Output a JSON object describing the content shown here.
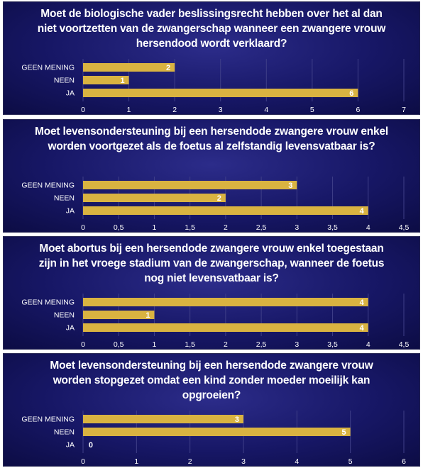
{
  "colors": {
    "bar": "#d9b341",
    "grid": "#3f3f88",
    "text": "#ffffff"
  },
  "chart_data": [
    {
      "type": "bar",
      "orientation": "horizontal",
      "title": "Moet de biologische vader beslissingsrecht hebben over het al dan niet voortzetten van de zwangerschap wanneer een zwangere vrouw hersendood wordt verklaard?",
      "categories": [
        "GEEN MENING",
        "NEEN",
        "JA"
      ],
      "values": [
        2,
        1,
        6
      ],
      "xlim": [
        0,
        7
      ],
      "ticks": [
        "0",
        "1",
        "2",
        "3",
        "4",
        "5",
        "6",
        "7"
      ],
      "grid": true
    },
    {
      "type": "bar",
      "orientation": "horizontal",
      "title": "Moet levensondersteuning bij een hersendode zwangere vrouw enkel worden voortgezet als de foetus al zelfstandig levensvatbaar is?",
      "categories": [
        "GEEN MENING",
        "NEEN",
        "JA"
      ],
      "values": [
        3,
        2,
        4
      ],
      "xlim": [
        0,
        4.5
      ],
      "ticks": [
        "0",
        "0,5",
        "1",
        "1,5",
        "2",
        "2,5",
        "3",
        "3,5",
        "4",
        "4,5"
      ],
      "grid": true
    },
    {
      "type": "bar",
      "orientation": "horizontal",
      "title": "Moet abortus bij een hersendode zwangere vrouw enkel toegestaan zijn in het vroege stadium van de zwangerschap, wanneer de foetus nog niet levensvatbaar is?",
      "categories": [
        "GEEN MENING",
        "NEEN",
        "JA"
      ],
      "values": [
        4,
        1,
        4
      ],
      "xlim": [
        0,
        4.5
      ],
      "ticks": [
        "0",
        "0,5",
        "1",
        "1,5",
        "2",
        "2,5",
        "3",
        "3,5",
        "4",
        "4,5"
      ],
      "grid": true
    },
    {
      "type": "bar",
      "orientation": "horizontal",
      "title": "Moet levensondersteuning bij een hersendode zwangere vrouw worden stopgezet omdat een kind zonder moeder moeilijk kan opgroeien?",
      "categories": [
        "GEEN MENING",
        "NEEN",
        "JA"
      ],
      "values": [
        3,
        5,
        0
      ],
      "xlim": [
        0,
        6
      ],
      "ticks": [
        "0",
        "1",
        "2",
        "3",
        "4",
        "5",
        "6"
      ],
      "grid": true
    }
  ]
}
